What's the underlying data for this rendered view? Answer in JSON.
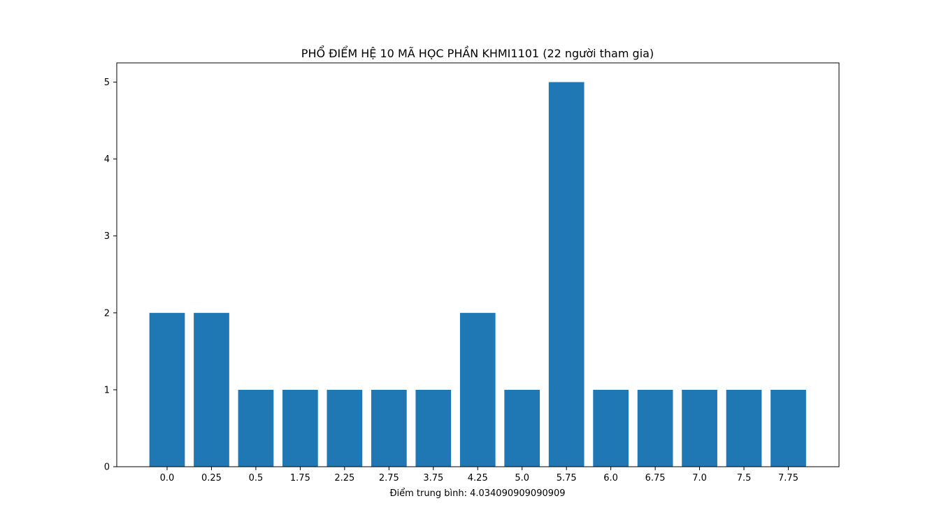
{
  "chart_data": {
    "type": "bar",
    "title": "PHỔ ĐIỂM HỆ 10 MÃ HỌC PHẦN KHMI1101 (22 người tham gia)",
    "xlabel": "Điểm trung bình: 4.034090909090909",
    "ylabel": "",
    "categories": [
      "0.0",
      "0.25",
      "0.5",
      "1.75",
      "2.25",
      "2.75",
      "3.75",
      "4.25",
      "5.0",
      "5.75",
      "6.0",
      "6.75",
      "7.0",
      "7.5",
      "7.75"
    ],
    "values": [
      2,
      2,
      1,
      1,
      1,
      1,
      1,
      2,
      1,
      5,
      1,
      1,
      1,
      1,
      1
    ],
    "yticks": [
      0,
      1,
      2,
      3,
      4,
      5
    ],
    "ylim": [
      0,
      5.25
    ],
    "grid": false,
    "bar_color": "#1f77b4"
  }
}
